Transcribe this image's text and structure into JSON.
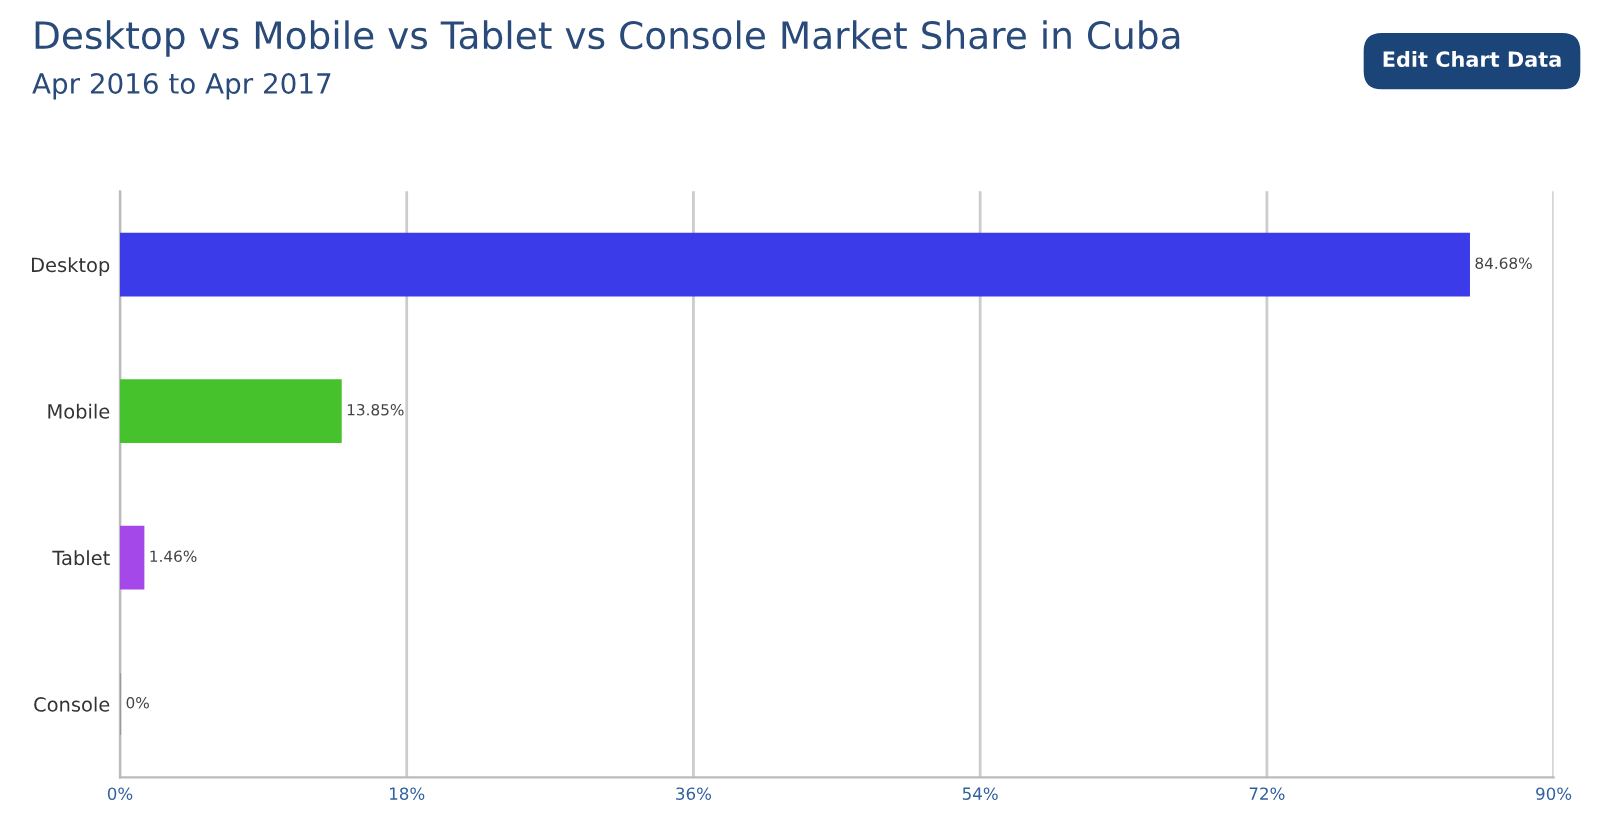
{
  "chart_data": {
    "type": "bar",
    "orientation": "horizontal",
    "title": "Desktop vs Mobile vs Tablet vs Console Market Share in Cuba",
    "subtitle": "Apr 2016 to Apr 2017",
    "annotations": [
      "Edit Chart Data"
    ],
    "categories": [
      "Desktop",
      "Mobile",
      "Tablet",
      "Console"
    ],
    "values": [
      84.68,
      13.85,
      1.46,
      0
    ],
    "colors": [
      "#3b3be9",
      "#45c22c",
      "#a448ea",
      "#999999"
    ],
    "value_labels": [
      "84.68%",
      "13.85%",
      "1.46%",
      "0%"
    ],
    "xlim": [
      0,
      90
    ],
    "xticks": [
      {
        "value": 0,
        "label": "0%"
      },
      {
        "value": 18,
        "label": "18%"
      },
      {
        "value": 36,
        "label": "36%"
      },
      {
        "value": 54,
        "label": "54%"
      },
      {
        "value": 72,
        "label": "72%"
      },
      {
        "value": 90,
        "label": "90%"
      }
    ],
    "grid": "x",
    "legend": false
  }
}
